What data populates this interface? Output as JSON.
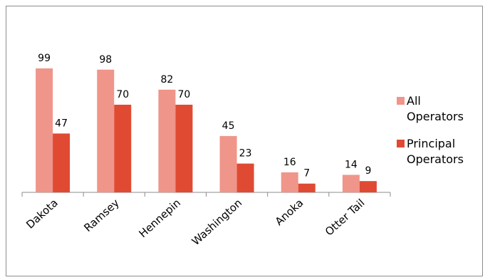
{
  "chart_data": {
    "type": "bar",
    "categories": [
      "Dakota",
      "Ramsey",
      "Hennepin",
      "Washington",
      "Anoka",
      "Otter Tail"
    ],
    "series": [
      {
        "name": "All Operators",
        "values": [
          99,
          98,
          82,
          45,
          16,
          14
        ],
        "color": "#f0958a"
      },
      {
        "name": "Principal Operators",
        "values": [
          47,
          70,
          70,
          23,
          7,
          9
        ],
        "color": "#e04a33"
      }
    ],
    "ylim": [
      0,
      110
    ],
    "grid": false,
    "legend_position": "right",
    "legend_lines": [
      [
        "All",
        "Operators"
      ],
      [
        "Principal",
        "Operators"
      ]
    ]
  }
}
